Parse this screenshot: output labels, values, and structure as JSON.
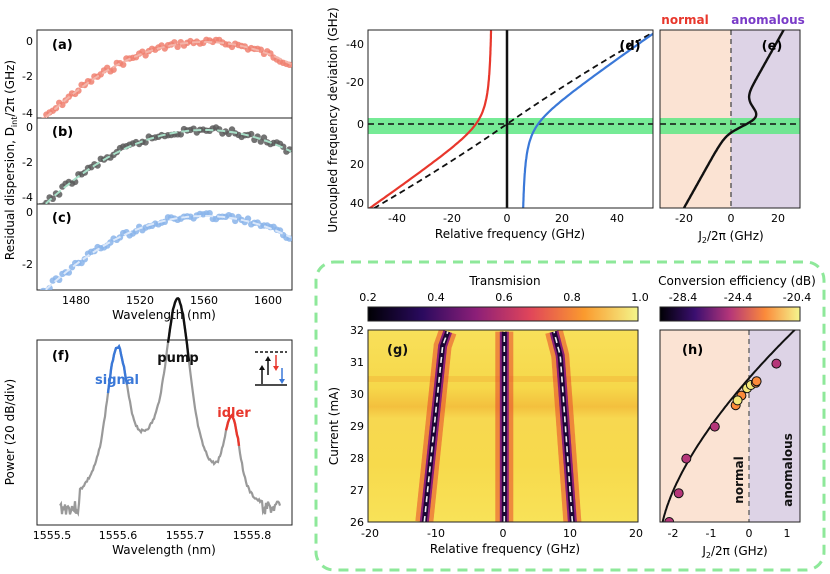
{
  "figure": {
    "panel_labels": {
      "a": "(a)",
      "b": "(b)",
      "c": "(c)",
      "d": "(d)",
      "e": "(e)",
      "f": "(f)",
      "g": "(g)",
      "h": "(h)"
    },
    "colors": {
      "red": "#e8372c",
      "salmon": "#f08070",
      "dark_gray": "#5a5a5a",
      "mint": "#a8e0c8",
      "blue": "#3a78d8",
      "light_blue": "#8ab4ea",
      "green_band": "#5ee884",
      "normal_bg": "#fbe3d3",
      "anomalous_bg": "#ddd3e6",
      "dash_box": "#8ee89a",
      "normal_text": "#e8372c",
      "anomalous_text": "#7a3cc8",
      "spectrum_gray": "#999999"
    }
  },
  "panel_abc": {
    "ylabel": "Residual dispersion, D",
    "ylabel_sub": "int",
    "ylabel_tail": "/2π (GHz)",
    "xlabel": "Wavelength (nm)",
    "xticks": [
      "1480",
      "1520",
      "1560",
      "1600"
    ],
    "yticks": [
      "0",
      "-2",
      "-4"
    ]
  },
  "panel_f": {
    "ylabel": "Power (20 dB/div)",
    "xlabel": "Wavelength (nm)",
    "xticks": [
      "1555.5",
      "1555.6",
      "1555.7",
      "1555.8"
    ],
    "labels": {
      "signal": "signal",
      "pump": "pump",
      "idler": "idler"
    }
  },
  "panel_d": {
    "ylabel": "Uncoupled frequency deviation (GHz)",
    "xlabel": "Relative frequency (GHz)",
    "xticks": [
      "-40",
      "-20",
      "0",
      "20",
      "40"
    ],
    "yticks": [
      "-40",
      "-20",
      "0",
      "20",
      "40"
    ]
  },
  "panel_e": {
    "xlabel_main": "J",
    "xlabel_sub": "2",
    "xlabel_tail": "/2π (GHz)",
    "xticks": [
      "-20",
      "0",
      "20"
    ],
    "normal": "normal",
    "anomalous": "anomalous"
  },
  "panel_g": {
    "colorbar_title": "Transmision",
    "colorbar_ticks": [
      "0.2",
      "0.4",
      "0.6",
      "0.8",
      "1.0"
    ],
    "ylabel": "Current (mA)",
    "xlabel": "Relative frequency (GHz)",
    "xticks": [
      "-20",
      "-10",
      "0",
      "10",
      "20"
    ],
    "yticks": [
      "26",
      "27",
      "28",
      "29",
      "30",
      "31",
      "32"
    ]
  },
  "panel_h": {
    "colorbar_title": "Conversion efficiency (dB)",
    "colorbar_ticks": [
      "-28.4",
      "-24.4",
      "-20.4"
    ],
    "xlabel_main": "J",
    "xlabel_sub": "2",
    "xlabel_tail": "/2π (GHz)",
    "xticks": [
      "-2",
      "-1",
      "0",
      "1"
    ],
    "normal": "normal",
    "anomalous": "anomalous"
  }
}
